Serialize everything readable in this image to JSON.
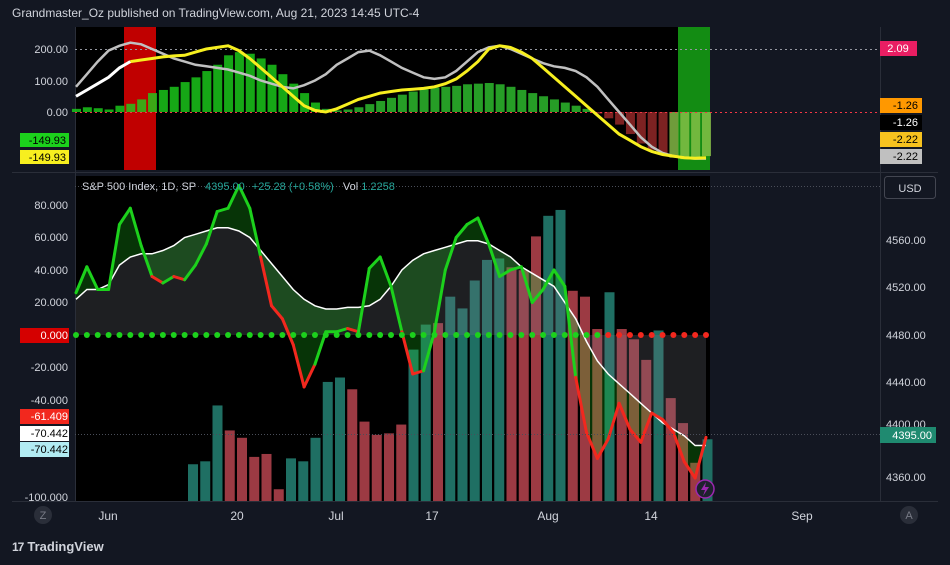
{
  "header": {
    "text": "Grandmaster_Oz published on TradingView.com, Aug 21, 2023 14:45 UTC-4"
  },
  "brand": {
    "logo": "17",
    "name": "TradingView"
  },
  "colors": {
    "bg": "#131722",
    "panel": "#000000",
    "up": "#1f6f63",
    "down": "#9c3a43",
    "green": "#1cd11c",
    "red": "#f2281e",
    "yellow": "#f7ef1f",
    "blue": "#2962ff",
    "pink": "#e91e63",
    "silver": "#c0c0c0",
    "white": "#ffffff"
  },
  "top_panel": {
    "y_ticks": [
      "200.00",
      "100.00",
      "0.00"
    ],
    "left_badges": [
      "-149.93",
      "-149.93"
    ],
    "right_badges": [
      "2.09",
      "-1.26",
      "-1.26",
      "-2.22",
      "-2.22"
    ]
  },
  "main_panel": {
    "legend": {
      "symbol": "S&P 500 Index, 1D, SP",
      "price": "4395.00",
      "change": "+25.28 (+0.58%)",
      "vol_label": "Vol",
      "vol_value": "1.2258"
    },
    "currency_button": "USD",
    "last_price": "4395.00",
    "bolt_icon": "lightning-icon",
    "corner_left": "Z",
    "corner_right": "A"
  },
  "chart_data": {
    "type": "bar",
    "title": "S&P 500 Index, 1D, SP",
    "x_ticks": [
      "Jun",
      "20",
      "Jul",
      "17",
      "Aug",
      "14",
      "Sep"
    ],
    "left_axis": {
      "ticks": [
        "80.000",
        "60.000",
        "40.000",
        "20.000",
        "0.000",
        "-20.000",
        "-40.000",
        "-61.409",
        "-70.442",
        "-70.442",
        "-100.000"
      ],
      "range": [
        -100,
        100
      ]
    },
    "right_axis": {
      "ticks": [
        "4560.00",
        "4520.00",
        "4480.00",
        "4440.00",
        "4400.00",
        "4360.00"
      ],
      "range": [
        4348,
        4600
      ]
    },
    "volume_bars": [
      {
        "v": 0.25,
        "up": true
      },
      {
        "v": 0.27,
        "up": true
      },
      {
        "v": 0.65,
        "up": true
      },
      {
        "v": 0.48,
        "up": false
      },
      {
        "v": 0.43,
        "up": false
      },
      {
        "v": 0.3,
        "up": false
      },
      {
        "v": 0.32,
        "up": false
      },
      {
        "v": 0.08,
        "up": false
      },
      {
        "v": 0.29,
        "up": true
      },
      {
        "v": 0.27,
        "up": true
      },
      {
        "v": 0.43,
        "up": true
      },
      {
        "v": 0.81,
        "up": true
      },
      {
        "v": 0.84,
        "up": true
      },
      {
        "v": 0.76,
        "up": false
      },
      {
        "v": 0.54,
        "up": false
      },
      {
        "v": 0.45,
        "up": false
      },
      {
        "v": 0.46,
        "up": false
      },
      {
        "v": 0.52,
        "up": false
      },
      {
        "v": 1.03,
        "up": true
      },
      {
        "v": 1.2,
        "up": true
      },
      {
        "v": 1.21,
        "up": false
      },
      {
        "v": 1.39,
        "up": true
      },
      {
        "v": 1.31,
        "up": true
      },
      {
        "v": 1.5,
        "up": true
      },
      {
        "v": 1.64,
        "up": true
      },
      {
        "v": 1.65,
        "up": true
      },
      {
        "v": 1.59,
        "up": false
      },
      {
        "v": 1.57,
        "up": false
      },
      {
        "v": 1.8,
        "up": false
      },
      {
        "v": 1.94,
        "up": true
      },
      {
        "v": 1.98,
        "up": true
      },
      {
        "v": 1.43,
        "up": false
      },
      {
        "v": 1.39,
        "up": false
      },
      {
        "v": 1.17,
        "up": false
      },
      {
        "v": 1.42,
        "up": true
      },
      {
        "v": 1.17,
        "up": false
      },
      {
        "v": 1.1,
        "up": false
      },
      {
        "v": 0.96,
        "up": false
      },
      {
        "v": 1.16,
        "up": true
      },
      {
        "v": 0.7,
        "up": false
      },
      {
        "v": 0.53,
        "up": false
      },
      {
        "v": 0.26,
        "up": false
      },
      {
        "v": 0.42,
        "up": true
      }
    ],
    "oscillator": [
      26,
      42,
      28,
      28,
      68,
      78,
      55,
      36,
      32,
      36,
      34,
      43,
      56,
      76,
      78,
      92,
      78,
      48,
      18,
      10,
      -6,
      -32,
      -18,
      2,
      2,
      4,
      2,
      41,
      48,
      30,
      2,
      -24,
      -22,
      2,
      40,
      60,
      68,
      72,
      56,
      36,
      40,
      42,
      20,
      28,
      40,
      30,
      -26,
      -60,
      -76,
      -64,
      -42,
      -58,
      -66,
      -48,
      -52,
      -60,
      -78,
      -88,
      -63
    ],
    "signal": [
      22,
      28,
      28,
      31,
      43,
      48,
      50,
      50,
      52,
      55,
      60,
      62,
      64,
      66,
      66,
      64,
      60,
      52,
      44,
      36,
      28,
      22,
      18,
      16,
      16,
      17,
      17,
      18,
      22,
      30,
      40,
      46,
      50,
      52,
      54,
      56,
      58,
      58,
      56,
      52,
      48,
      42,
      38,
      34,
      30,
      20,
      10,
      -4,
      -16,
      -24,
      -30,
      -36,
      -42,
      -48,
      -54,
      -58,
      -62,
      -68,
      -68
    ]
  }
}
